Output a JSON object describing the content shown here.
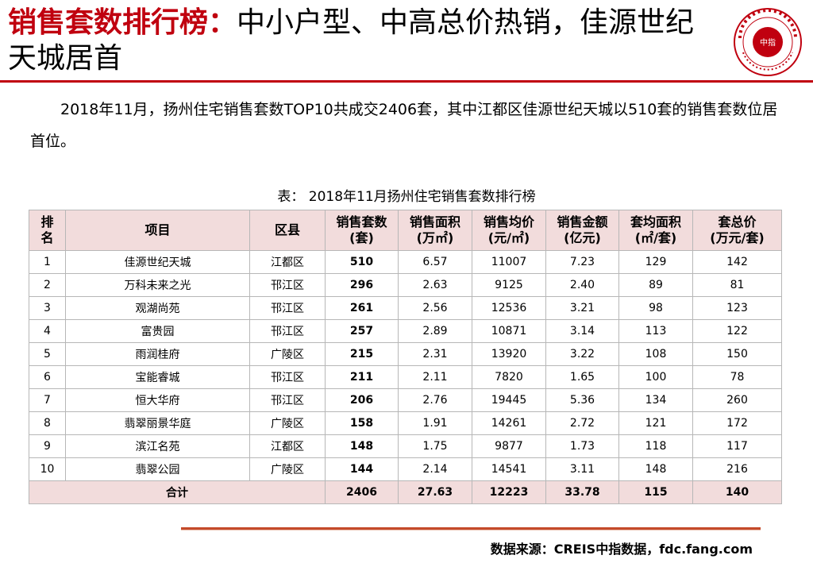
{
  "header": {
    "title_highlight": "销售套数排行榜：",
    "title_rest": "中小户型、中高总价热销，佳源世纪天城居首",
    "logo_mark": "中指",
    "logo_colors": {
      "ring": "#c0000f"
    }
  },
  "intro_text": "2018年11月，扬州住宅销售套数TOP10共成交2406套，其中江都区佳源世纪天城以510套的销售套数位居首位。",
  "table_caption": "表： 2018年11月扬州住宅销售套数排行榜",
  "table": {
    "headers": [
      {
        "l1": "排",
        "l2": "名"
      },
      {
        "l1": "项目",
        "l2": ""
      },
      {
        "l1": "区县",
        "l2": ""
      },
      {
        "l1": "销售套数",
        "l2": "(套)"
      },
      {
        "l1": "销售面积",
        "l2": "(万㎡)"
      },
      {
        "l1": "销售均价",
        "l2": "(元/㎡)"
      },
      {
        "l1": "销售金额",
        "l2": "(亿元)"
      },
      {
        "l1": "套均面积",
        "l2": "(㎡/套)"
      },
      {
        "l1": "套总价",
        "l2": "(万元/套)"
      }
    ],
    "rows": [
      {
        "rank": "1",
        "project": "佳源世纪天城",
        "district": "江都区",
        "units": "510",
        "area": "6.57",
        "avg_price": "11007",
        "amount": "7.23",
        "avg_area": "129",
        "unit_price": "142"
      },
      {
        "rank": "2",
        "project": "万科未来之光",
        "district": "邗江区",
        "units": "296",
        "area": "2.63",
        "avg_price": "9125",
        "amount": "2.40",
        "avg_area": "89",
        "unit_price": "81"
      },
      {
        "rank": "3",
        "project": "观湖尚苑",
        "district": "邗江区",
        "units": "261",
        "area": "2.56",
        "avg_price": "12536",
        "amount": "3.21",
        "avg_area": "98",
        "unit_price": "123"
      },
      {
        "rank": "4",
        "project": "富贵园",
        "district": "邗江区",
        "units": "257",
        "area": "2.89",
        "avg_price": "10871",
        "amount": "3.14",
        "avg_area": "113",
        "unit_price": "122"
      },
      {
        "rank": "5",
        "project": "雨润桂府",
        "district": "广陵区",
        "units": "215",
        "area": "2.31",
        "avg_price": "13920",
        "amount": "3.22",
        "avg_area": "108",
        "unit_price": "150"
      },
      {
        "rank": "6",
        "project": "宝能睿城",
        "district": "邗江区",
        "units": "211",
        "area": "2.11",
        "avg_price": "7820",
        "amount": "1.65",
        "avg_area": "100",
        "unit_price": "78"
      },
      {
        "rank": "7",
        "project": "恒大华府",
        "district": "邗江区",
        "units": "206",
        "area": "2.76",
        "avg_price": "19445",
        "amount": "5.36",
        "avg_area": "134",
        "unit_price": "260"
      },
      {
        "rank": "8",
        "project": "翡翠丽景华庭",
        "district": "广陵区",
        "units": "158",
        "area": "1.91",
        "avg_price": "14261",
        "amount": "2.72",
        "avg_area": "121",
        "unit_price": "172"
      },
      {
        "rank": "9",
        "project": "滨江名苑",
        "district": "江都区",
        "units": "148",
        "area": "1.75",
        "avg_price": "9877",
        "amount": "1.73",
        "avg_area": "118",
        "unit_price": "117"
      },
      {
        "rank": "10",
        "project": "翡翠公园",
        "district": "广陵区",
        "units": "144",
        "area": "2.14",
        "avg_price": "14541",
        "amount": "3.11",
        "avg_area": "148",
        "unit_price": "216"
      }
    ],
    "total": {
      "label": "合计",
      "units": "2406",
      "area": "27.63",
      "avg_price": "12223",
      "amount": "33.78",
      "avg_area": "115",
      "unit_price": "140"
    }
  },
  "source": "数据来源：CREIS中指数据，fdc.fang.com"
}
